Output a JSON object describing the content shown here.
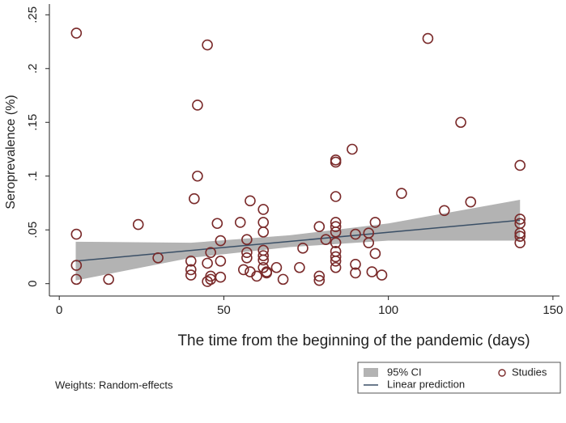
{
  "chart_data": {
    "type": "scatter",
    "ylabel": "Seroprevalence (%)",
    "xlabel": "The time from the beginning of the pandemic (days)",
    "note": "Weights: Random-effects",
    "xlim": [
      -3,
      152
    ],
    "xticks": [
      0,
      50,
      100,
      150
    ],
    "ylim": [
      -0.01,
      0.26
    ],
    "yticks": [
      0,
      {
        "value": 0.05,
        "label": ".05"
      },
      {
        "value": 0.1,
        "label": ".1"
      },
      {
        "value": 0.15,
        "label": ".15"
      },
      {
        "value": 0.2,
        "label": ".2"
      },
      {
        "value": 0.25,
        "label": ".25"
      }
    ],
    "band": {
      "name": "95% CI",
      "color": "#b3b3b3",
      "x": [
        5,
        40,
        70,
        100,
        140
      ],
      "lower": [
        0.003,
        0.024,
        0.034,
        0.04,
        0.04
      ],
      "upper": [
        0.039,
        0.038,
        0.045,
        0.056,
        0.078
      ]
    },
    "fit": {
      "name": "Linear prediction",
      "color": "#3a4f66",
      "x": [
        5,
        140
      ],
      "values": [
        0.021,
        0.059
      ]
    },
    "series": [
      {
        "name": "Studies",
        "color": "#7a2a2a",
        "x": [
          5.2,
          5.2,
          5.2,
          5.2,
          15,
          24,
          30,
          45,
          42,
          42,
          41,
          40,
          40,
          40,
          46,
          45,
          48,
          49,
          49,
          49,
          46,
          46,
          45,
          55,
          57,
          58,
          57,
          57,
          56,
          58,
          60,
          62,
          62,
          62,
          62,
          62,
          62,
          62,
          63,
          63,
          66,
          68,
          74,
          73,
          79,
          79,
          79,
          81,
          84,
          84,
          84,
          84,
          84,
          84,
          84,
          84,
          84,
          84,
          84,
          89,
          90,
          90,
          90,
          94,
          94,
          96,
          96,
          95,
          98,
          104,
          112,
          117,
          122,
          125,
          140,
          140,
          140,
          140,
          140,
          140
        ],
        "values": [
          0.233,
          0.046,
          0.017,
          0.004,
          0.004,
          0.055,
          0.024,
          0.222,
          0.166,
          0.1,
          0.079,
          0.021,
          0.013,
          0.008,
          0.029,
          0.019,
          0.056,
          0.04,
          0.021,
          0.006,
          0.007,
          0.004,
          0.002,
          0.057,
          0.041,
          0.077,
          0.029,
          0.024,
          0.013,
          0.011,
          0.007,
          0.069,
          0.057,
          0.048,
          0.031,
          0.026,
          0.022,
          0.015,
          0.011,
          0.01,
          0.015,
          0.004,
          0.033,
          0.015,
          0.053,
          0.007,
          0.003,
          0.041,
          0.115,
          0.113,
          0.081,
          0.057,
          0.053,
          0.048,
          0.038,
          0.03,
          0.025,
          0.021,
          0.015,
          0.125,
          0.046,
          0.018,
          0.01,
          0.047,
          0.038,
          0.057,
          0.028,
          0.011,
          0.008,
          0.084,
          0.228,
          0.068,
          0.15,
          0.076,
          0.11,
          0.06,
          0.056,
          0.047,
          0.044,
          0.038
        ]
      }
    ]
  }
}
